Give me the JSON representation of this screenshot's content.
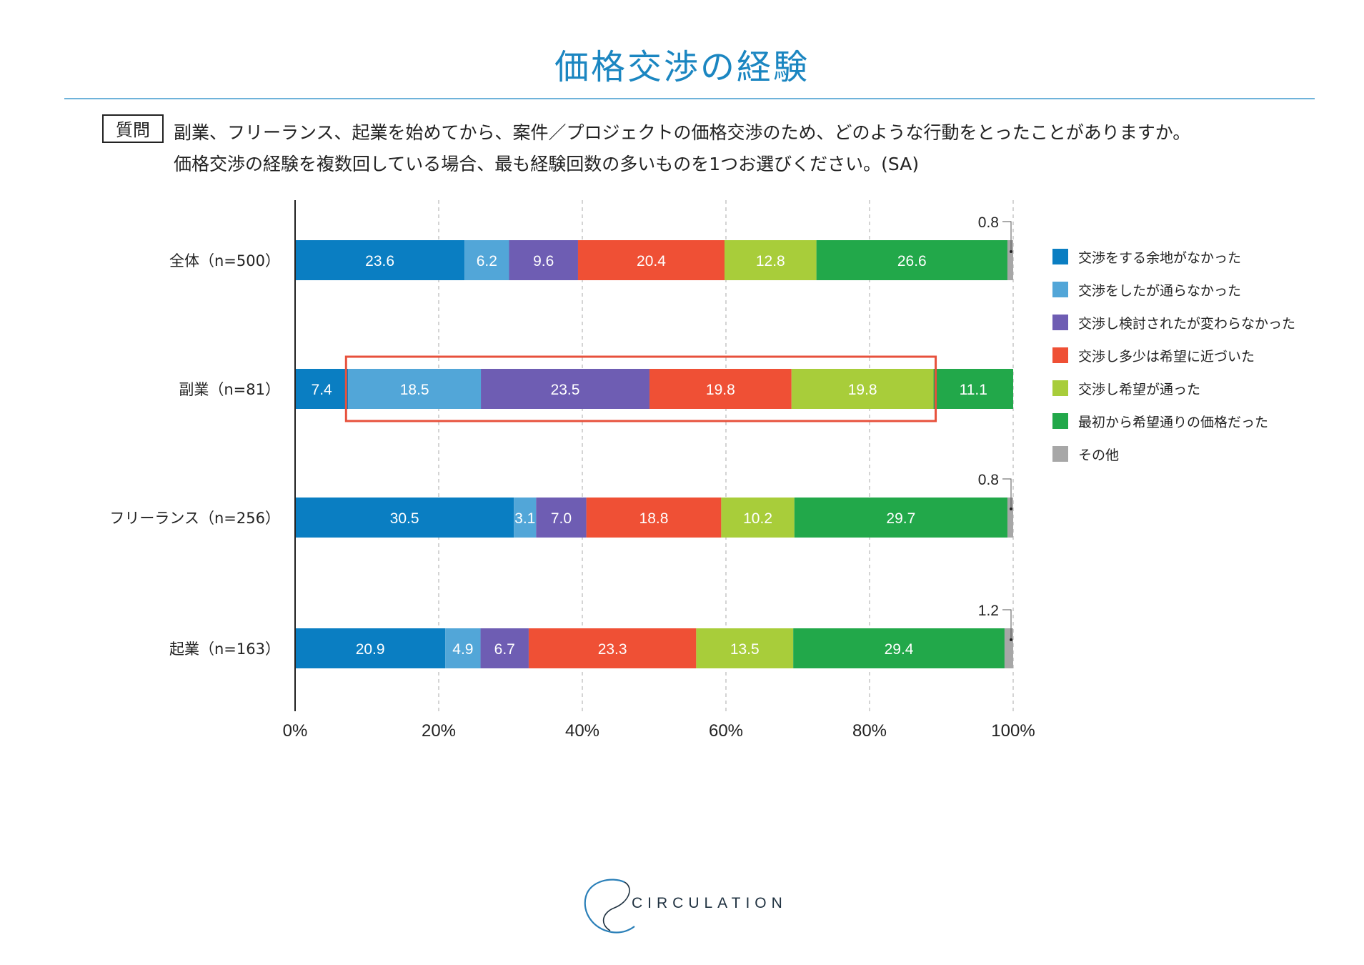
{
  "header": {
    "title": "価格交渉の経験",
    "question_badge": "質問",
    "question_line1": "副業、フリーランス、起業を始めてから、案件／プロジェクトの価格交渉のため、どのような行動をとったことがありますか。",
    "question_line2": "価格交渉の経験を複数回している場合、最も経験回数の多いものを1つお選びください。(SA)"
  },
  "chart_data": {
    "type": "bar",
    "orientation": "horizontal",
    "stacked": true,
    "xlim": [
      0,
      100
    ],
    "x_ticks": [
      "0%",
      "20%",
      "40%",
      "60%",
      "80%",
      "100%"
    ],
    "categories": [
      "全体（n=500）",
      "副業（n=81）",
      "フリーランス（n=256）",
      "起業（n=163）"
    ],
    "series": [
      {
        "name": "交渉をする余地がなかった",
        "color": "#0a7ec2",
        "values": [
          23.6,
          7.4,
          30.5,
          20.9
        ],
        "labels": [
          "23.6",
          "7.4",
          "30.5",
          "20.9"
        ]
      },
      {
        "name": "交渉をしたが通らなかった",
        "color": "#52a6d8",
        "values": [
          6.2,
          18.5,
          3.1,
          4.9
        ],
        "labels": [
          "6.2",
          "18.5",
          "3.1",
          "4.9"
        ]
      },
      {
        "name": "交渉し検討されたが変わらなかった",
        "color": "#6e5db3",
        "values": [
          9.6,
          23.5,
          7.0,
          6.7
        ],
        "labels": [
          "9.6",
          "23.5",
          "7.0",
          "6.7"
        ]
      },
      {
        "name": "交渉し多少は希望に近づいた",
        "color": "#ef5035",
        "values": [
          20.4,
          19.8,
          18.8,
          23.3
        ],
        "labels": [
          "20.4",
          "19.8",
          "18.8",
          "23.3"
        ]
      },
      {
        "name": "交渉し希望が通った",
        "color": "#a8cd3a",
        "values": [
          12.8,
          19.8,
          10.2,
          13.5
        ],
        "labels": [
          "12.8",
          "19.8",
          "10.2",
          "13.5"
        ]
      },
      {
        "name": "最初から希望通りの価格だった",
        "color": "#22a84a",
        "values": [
          26.6,
          11.1,
          29.7,
          29.4
        ],
        "labels": [
          "26.6",
          "11.1",
          "29.7",
          "29.4"
        ]
      },
      {
        "name": "その他",
        "color": "#a7a7a7",
        "values": [
          0.8,
          0,
          0.8,
          1.2
        ],
        "labels": [
          "0.8",
          "",
          "0.8",
          "1.2"
        ]
      }
    ],
    "highlight": {
      "category": "副業（n=81）",
      "from_series": 1,
      "to_series": 4,
      "color": "#e7513c"
    }
  },
  "footer": {
    "logo_text": "CIRCULATION"
  }
}
